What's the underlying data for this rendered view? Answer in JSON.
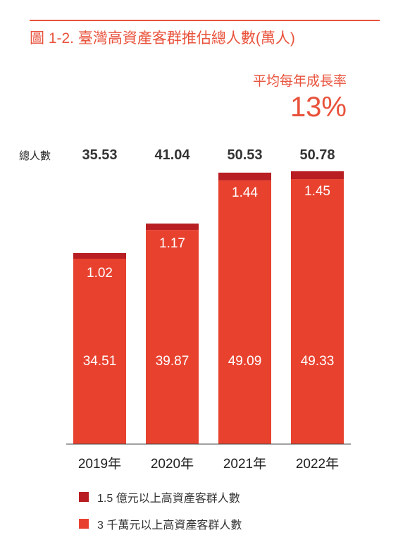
{
  "title": "圖 1-2. 臺灣高資產客群推估總人數(萬人)",
  "growth": {
    "label": "平均每年成長率",
    "value": "13%"
  },
  "colors": {
    "accent": "#e8523b",
    "top_series": "#b81e22",
    "base_series": "#e8422f"
  },
  "chart_data": {
    "type": "bar",
    "stacked": true,
    "title": "圖 1-2. 臺灣高資產客群推估總人數(萬人)",
    "categories": [
      "2019年",
      "2020年",
      "2021年",
      "2022年"
    ],
    "series": [
      {
        "name": "3 千萬元以上高資產客群人數",
        "values": [
          34.51,
          39.87,
          49.09,
          49.33
        ],
        "color": "#e8422f"
      },
      {
        "name": "1.5 億元以上高資產客群人數",
        "values": [
          1.02,
          1.17,
          1.44,
          1.45
        ],
        "color": "#b81e22"
      }
    ],
    "totals_label": "總人數",
    "totals": [
      35.53,
      41.04,
      50.53,
      50.78
    ],
    "xlabel": "",
    "ylabel": "",
    "ylim": [
      0,
      52
    ],
    "grid": false,
    "legend_position": "bottom-left"
  }
}
